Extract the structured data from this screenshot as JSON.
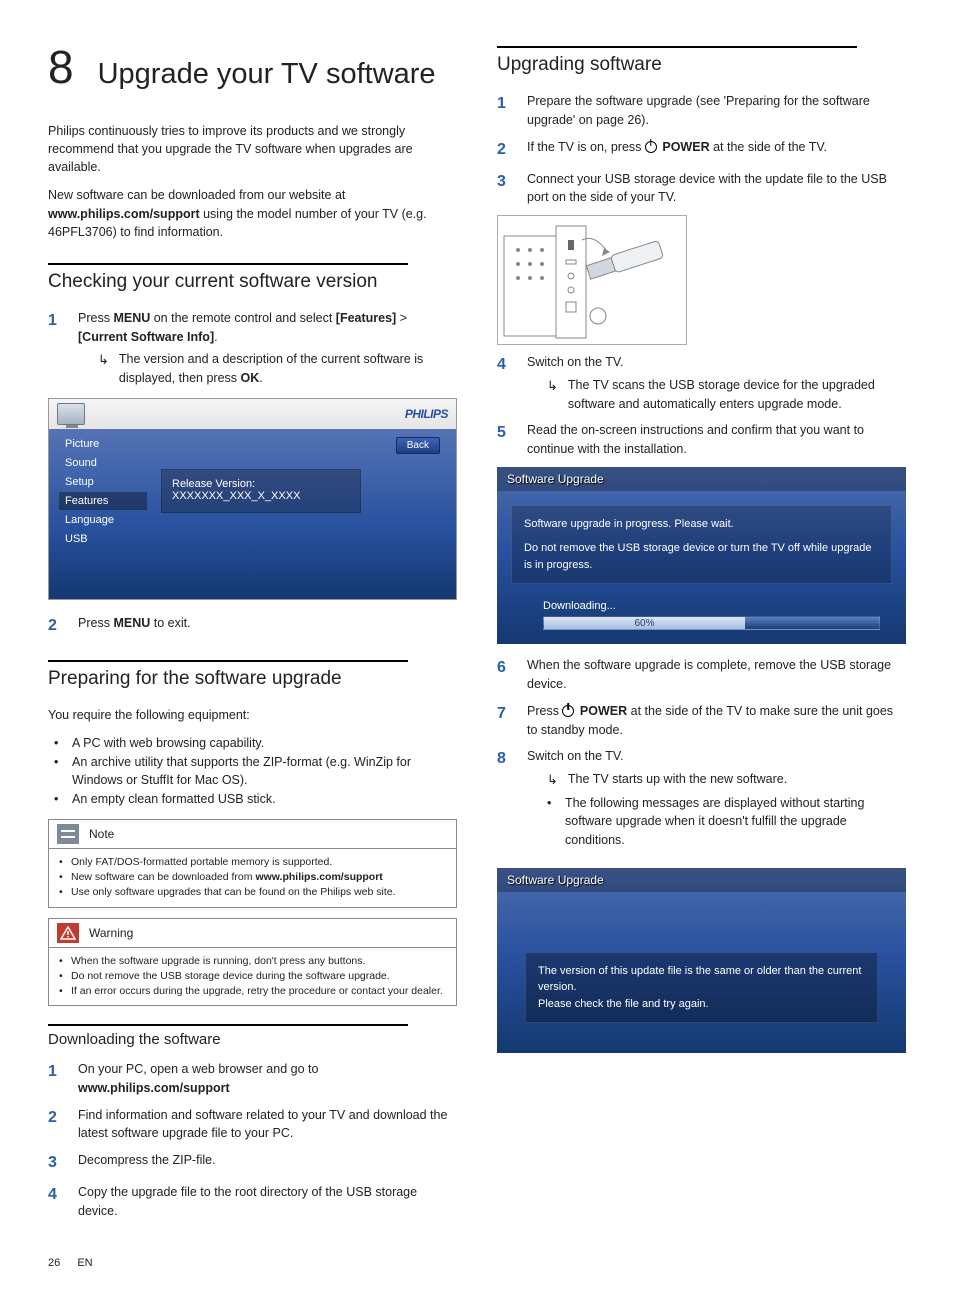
{
  "chapter": {
    "num": "8",
    "title": "Upgrade your TV software"
  },
  "intro1": "Philips continuously tries to improve its products and we strongly recommend that you upgrade the TV software when upgrades are available.",
  "intro2_a": "New software can be downloaded from our website at ",
  "intro2_url": "www.philips.com/support",
  "intro2_b": " using the model number of your TV (e.g. 46PFL3706) to find information.",
  "sec_check": {
    "title": "Checking your current software version",
    "step1_a": "Press ",
    "step1_menu": "MENU",
    "step1_b": " on the remote control and select ",
    "step1_feat": "[Features]",
    "step1_gt": " > ",
    "step1_cur": "[Current Software Info]",
    "step1_dot": ".",
    "arrow": "The version and a description of the current software is displayed, then press ",
    "ok": "OK",
    "arrow_dot": ".",
    "step2_a": "Press ",
    "step2_menu": "MENU",
    "step2_b": " to exit."
  },
  "tv_menu": {
    "brand": "PHILIPS",
    "items": [
      "Picture",
      "Sound",
      "Setup",
      "Features",
      "Language",
      "USB"
    ],
    "active_index": 3,
    "back": "Back",
    "info_line1": "Release Version:",
    "info_line2": "XXXXXXX_XXX_X_XXXX"
  },
  "sec_prep": {
    "title": "Preparing for the software upgrade",
    "lead": "You require the following equipment:",
    "bul1": "A PC with web browsing capability.",
    "bul2": "An archive utility that supports the ZIP-format (e.g. WinZip for Windows or StuffIt for Mac OS).",
    "bul3": "An empty clean formatted USB stick."
  },
  "note": {
    "label": "Note",
    "l1": "Only FAT/DOS-formatted portable memory is supported.",
    "l2_a": "New software can be downloaded from ",
    "l2_url": "www.philips.com/support",
    "l3": "Use only software upgrades that can be found on the Philips web site."
  },
  "warning": {
    "label": "Warning",
    "l1": "When the software upgrade is running, don't press any buttons.",
    "l2": "Do not remove the USB storage device during the software upgrade.",
    "l3": "If an error occurs during the upgrade, retry the procedure or contact your dealer."
  },
  "sec_download": {
    "title": "Downloading the software",
    "s1_a": "On your PC, open a web browser and go to ",
    "s1_url": "www.philips.com/support",
    "s2": "Find information and software related to your TV and download the latest software upgrade file to your PC.",
    "s3": "Decompress the ZIP-file.",
    "s4": "Copy the upgrade file to the root directory of the USB storage device."
  },
  "sec_upg": {
    "title": "Upgrading software",
    "s1": "Prepare the software upgrade (see 'Preparing for the software upgrade' on page 26).",
    "s2_a": "If the TV is on, press ",
    "s2_pw": "POWER",
    "s2_b": " at the side of the TV.",
    "s3": "Connect your USB storage device with the update file to the USB port on the side of your TV.",
    "s4": "Switch on the TV.",
    "s4_arrow": "The TV scans the USB storage device for the upgraded software and automatically enters upgrade mode.",
    "s5": "Read the on-screen instructions and confirm that you want to continue with the installation.",
    "s6": "When the software upgrade is complete, remove the USB storage device.",
    "s7_a": "Press ",
    "s7_pw": "POWER",
    "s7_b": " at the side of the TV to make sure the unit goes to standby mode.",
    "s8": "Switch on the TV.",
    "s8_arrow": "The TV starts up with the new software.",
    "s8_bul": "The following messages are displayed without starting software upgrade when it doesn't fulfill the upgrade conditions."
  },
  "progress_panel": {
    "title": "Software Upgrade",
    "line1": "Software upgrade in progress. Please wait.",
    "line2": "Do not remove the USB storage device or turn the TV off while upgrade is in progress.",
    "downloading": "Downloading...",
    "percent": "60%",
    "percent_value": 60
  },
  "error_panel": {
    "title": "Software Upgrade",
    "line1": "The version of this update file is the same or older than the current version.",
    "line2": "Please check the file and try again."
  },
  "footer": {
    "page": "26",
    "lang": "EN"
  },
  "colors": {
    "accent_blue": "#2a5fa6",
    "panel_grad_top": "#4c6cae",
    "panel_grad_bottom": "#153870",
    "note_bg": "#7d8a9a",
    "warn_bg": "#c23b2f"
  }
}
